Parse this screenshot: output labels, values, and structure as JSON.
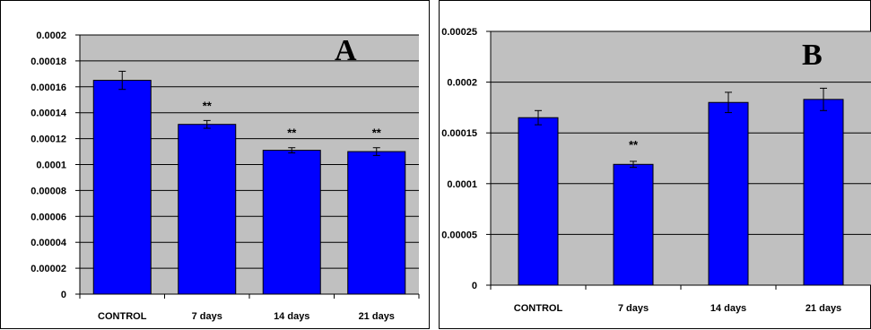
{
  "chart_data": [
    {
      "type": "bar",
      "panel_label": "A",
      "categories": [
        "CONTROL",
        "7 days",
        "14 days",
        "21 days"
      ],
      "values": [
        0.000165,
        0.000131,
        0.000111,
        0.00011
      ],
      "error": [
        7e-06,
        3e-06,
        2e-06,
        3e-06
      ],
      "annotations": [
        "",
        "**",
        "**",
        "**"
      ],
      "ylim": [
        0,
        0.0002
      ],
      "yticks": [
        0,
        2e-05,
        4e-05,
        6e-05,
        8e-05,
        0.0001,
        0.00012,
        0.00014,
        0.00016,
        0.00018,
        0.0002
      ],
      "ytick_labels": [
        "0",
        "0.00002",
        "0.00004",
        "0.00006",
        "0.00008",
        "0.0001",
        "0.00012",
        "0.00014",
        "0.00016",
        "0.00018",
        "0.0002"
      ],
      "xlabel": "",
      "ylabel": "",
      "grid": true,
      "colors": {
        "bar": "#0000ff",
        "plot_bg": "#c0c0c0",
        "grid": "#000000"
      }
    },
    {
      "type": "bar",
      "panel_label": "B",
      "categories": [
        "CONTROL",
        "7 days",
        "14 days",
        "21 days"
      ],
      "values": [
        0.000165,
        0.000119,
        0.00018,
        0.000183
      ],
      "error": [
        7e-06,
        3e-06,
        1e-05,
        1.1e-05
      ],
      "annotations": [
        "",
        "**",
        "",
        ""
      ],
      "ylim": [
        0,
        0.00025
      ],
      "yticks": [
        0,
        5e-05,
        0.0001,
        0.00015,
        0.0002,
        0.00025
      ],
      "ytick_labels": [
        "0",
        "0.00005",
        "0.0001",
        "0.00015",
        "0.0002",
        "0.00025"
      ],
      "xlabel": "",
      "ylabel": "",
      "grid": true,
      "colors": {
        "bar": "#0000ff",
        "plot_bg": "#c0c0c0",
        "grid": "#000000"
      }
    }
  ]
}
